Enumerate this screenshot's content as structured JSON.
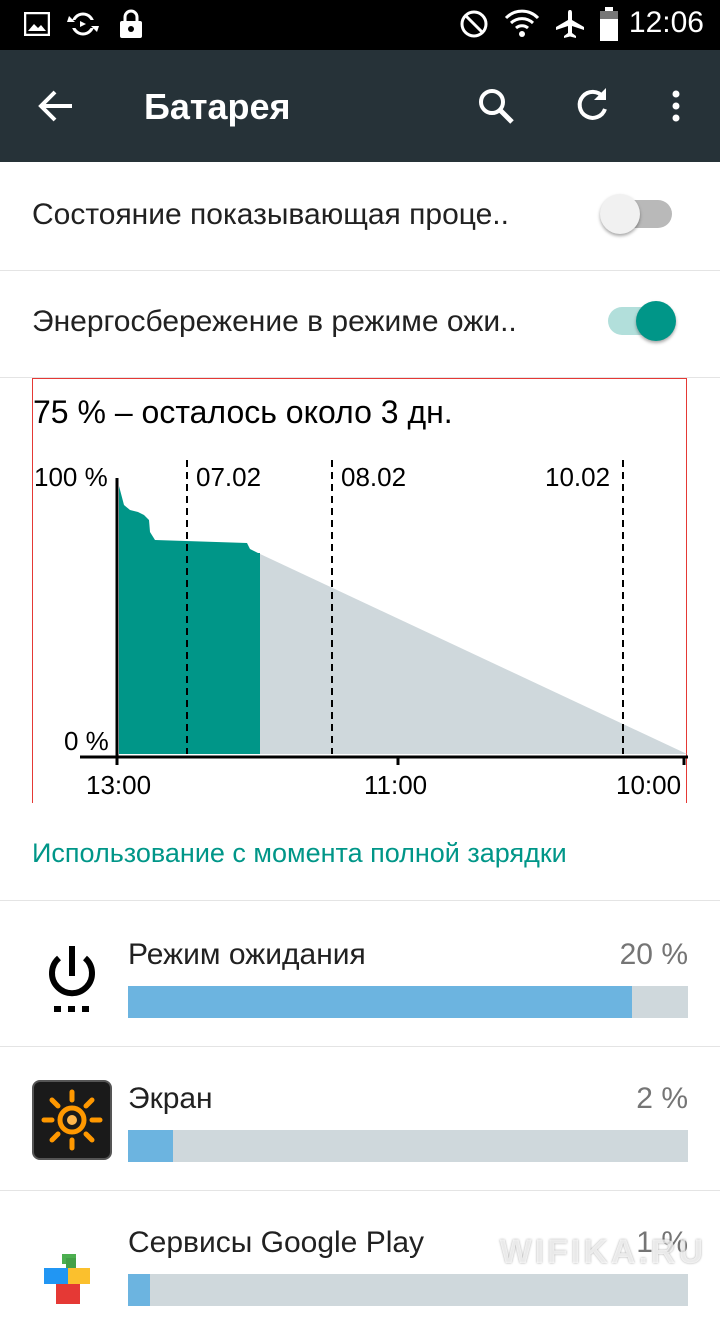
{
  "status_bar": {
    "time": "12:06",
    "icons": [
      "image-icon",
      "sync-icon",
      "lock-icon",
      "do-not-disturb-icon",
      "wifi-icon",
      "airplane-icon",
      "battery-icon"
    ]
  },
  "toolbar": {
    "title": "Батарея",
    "back_icon": "arrow-back-icon",
    "search_icon": "search-icon",
    "refresh_icon": "refresh-icon",
    "menu_icon": "more-vert-icon"
  },
  "settings": [
    {
      "label": "Состояние показывающая проце..",
      "enabled": false
    },
    {
      "label": "Энергосбережение в режиме ожи..",
      "enabled": true
    }
  ],
  "graph": {
    "summary": "75 % – осталось около 3 дн.",
    "y_top_label": "100 %",
    "y_bottom_label": "0 %",
    "date_labels": [
      "07.02",
      "08.02",
      "10.02"
    ],
    "time_labels": [
      "13:00",
      "11:00",
      "10:00"
    ],
    "colors": {
      "used": "#009688",
      "projected": "#cfd8dc"
    }
  },
  "section_header": "Использование с момента полной зарядки",
  "apps": [
    {
      "name": "Режим ожидания",
      "percent": "20 %",
      "fill": 0.9,
      "icon": "power-icon"
    },
    {
      "name": "Экран",
      "percent": "2 %",
      "fill": 0.08,
      "icon": "brightness-icon"
    },
    {
      "name": "Сервисы Google Play",
      "percent": "1 %",
      "fill": 0.04,
      "icon": "google-play-services-icon"
    }
  ],
  "watermark": "WIFIKA.RU",
  "colors": {
    "toolbar": "#263238",
    "accent": "#009688",
    "bar": "#6cb4e0",
    "bar_track": "#cfd8dc"
  }
}
